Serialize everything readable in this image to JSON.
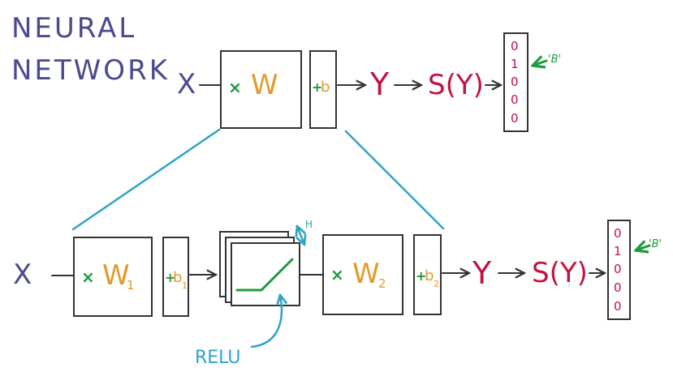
{
  "title": {
    "line1": "NEURAL",
    "line2": "NETWORK"
  },
  "top_model": {
    "input": "X",
    "multiply": "×",
    "weight": "W",
    "bias_plus": "+",
    "bias": "b",
    "output": "Y",
    "softmax": "S(Y)",
    "vector": [
      "0",
      "1",
      "0",
      "0",
      "0"
    ],
    "label": "'B'"
  },
  "bottom_model": {
    "input": "X",
    "multiply1": "×",
    "weight1": "W",
    "weight1_sub": "1",
    "bias1_plus": "+",
    "bias1": "b",
    "bias1_sub": "1",
    "relu_label": "RELU",
    "relu_size": "H",
    "multiply2": "×",
    "weight2": "W",
    "weight2_sub": "2",
    "bias2_plus": "+",
    "bias2": "b",
    "bias2_sub": "2",
    "output": "Y",
    "softmax": "S(Y)",
    "vector": [
      "0",
      "1",
      "0",
      "0",
      "0"
    ],
    "label": "'B'"
  },
  "colors": {
    "title": "#4a4a8f",
    "weight": "#e39a2d",
    "operator": "#1f9a3e",
    "output": "#c2123f",
    "relu": "#2fa3c4"
  }
}
